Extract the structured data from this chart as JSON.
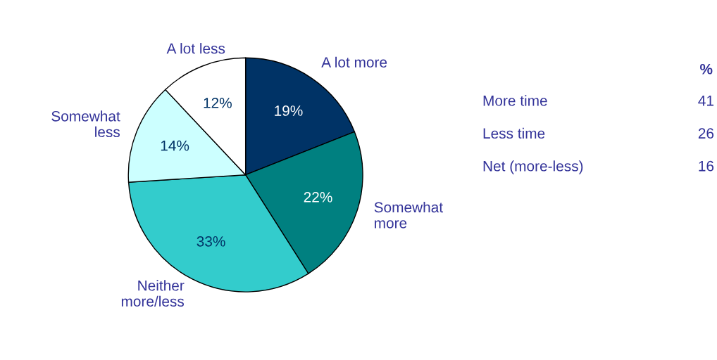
{
  "chart_data": {
    "type": "pie",
    "categories": [
      "A lot more",
      "Somewhat\nmore",
      "Neither\nmore/less",
      "Somewhat\nless",
      "A lot less"
    ],
    "values": [
      19,
      22,
      33,
      14,
      12
    ],
    "colors": [
      "#003366",
      "#008080",
      "#33cccc",
      "#ccffff",
      "#ffffff"
    ],
    "value_labels": [
      "19%",
      "22%",
      "33%",
      "14%",
      "12%"
    ],
    "annotations": [
      "%",
      "More time",
      "41",
      "Less time",
      "26",
      "Net (more-less)",
      "16"
    ],
    "legend": false
  }
}
